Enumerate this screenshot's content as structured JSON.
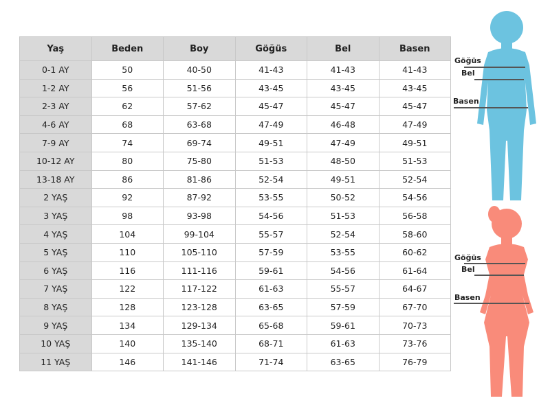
{
  "table": {
    "header": [
      "Yaş",
      "Beden",
      "Boy",
      "Göğüs",
      "Bel",
      "Basen"
    ],
    "rows": [
      [
        "0-1 AY",
        "50",
        "40-50",
        "41-43",
        "41-43",
        "41-43"
      ],
      [
        "1-2 AY",
        "56",
        "51-56",
        "43-45",
        "43-45",
        "43-45"
      ],
      [
        "2-3 AY",
        "62",
        "57-62",
        "45-47",
        "45-47",
        "45-47"
      ],
      [
        "4-6 AY",
        "68",
        "63-68",
        "47-49",
        "46-48",
        "47-49"
      ],
      [
        "7-9 AY",
        "74",
        "69-74",
        "49-51",
        "47-49",
        "49-51"
      ],
      [
        "10-12 AY",
        "80",
        "75-80",
        "51-53",
        "48-50",
        "51-53"
      ],
      [
        "13-18 AY",
        "86",
        "81-86",
        "52-54",
        "49-51",
        "52-54"
      ],
      [
        "2 YAŞ",
        "92",
        "87-92",
        "53-55",
        "50-52",
        "54-56"
      ],
      [
        "3 YAŞ",
        "98",
        "93-98",
        "54-56",
        "51-53",
        "56-58"
      ],
      [
        "4 YAŞ",
        "104",
        "99-104",
        "55-57",
        "52-54",
        "58-60"
      ],
      [
        "5 YAŞ",
        "110",
        "105-110",
        "57-59",
        "53-55",
        "60-62"
      ],
      [
        "6 YAŞ",
        "116",
        "111-116",
        "59-61",
        "54-56",
        "61-64"
      ],
      [
        "7 YAŞ",
        "122",
        "117-122",
        "61-63",
        "55-57",
        "64-67"
      ],
      [
        "8 YAŞ",
        "128",
        "123-128",
        "63-65",
        "57-59",
        "67-70"
      ],
      [
        "9 YAŞ",
        "134",
        "129-134",
        "65-68",
        "59-61",
        "70-73"
      ],
      [
        "10 YAŞ",
        "140",
        "135-140",
        "68-71",
        "61-63",
        "73-76"
      ],
      [
        "11 YAŞ",
        "146",
        "141-146",
        "71-74",
        "63-65",
        "76-79"
      ]
    ]
  },
  "figures": [
    {
      "labels": [
        "Göğüs",
        "Bel",
        "Basen"
      ]
    },
    {
      "labels": [
        "Göğüs",
        "Bel",
        "Basen"
      ]
    }
  ]
}
